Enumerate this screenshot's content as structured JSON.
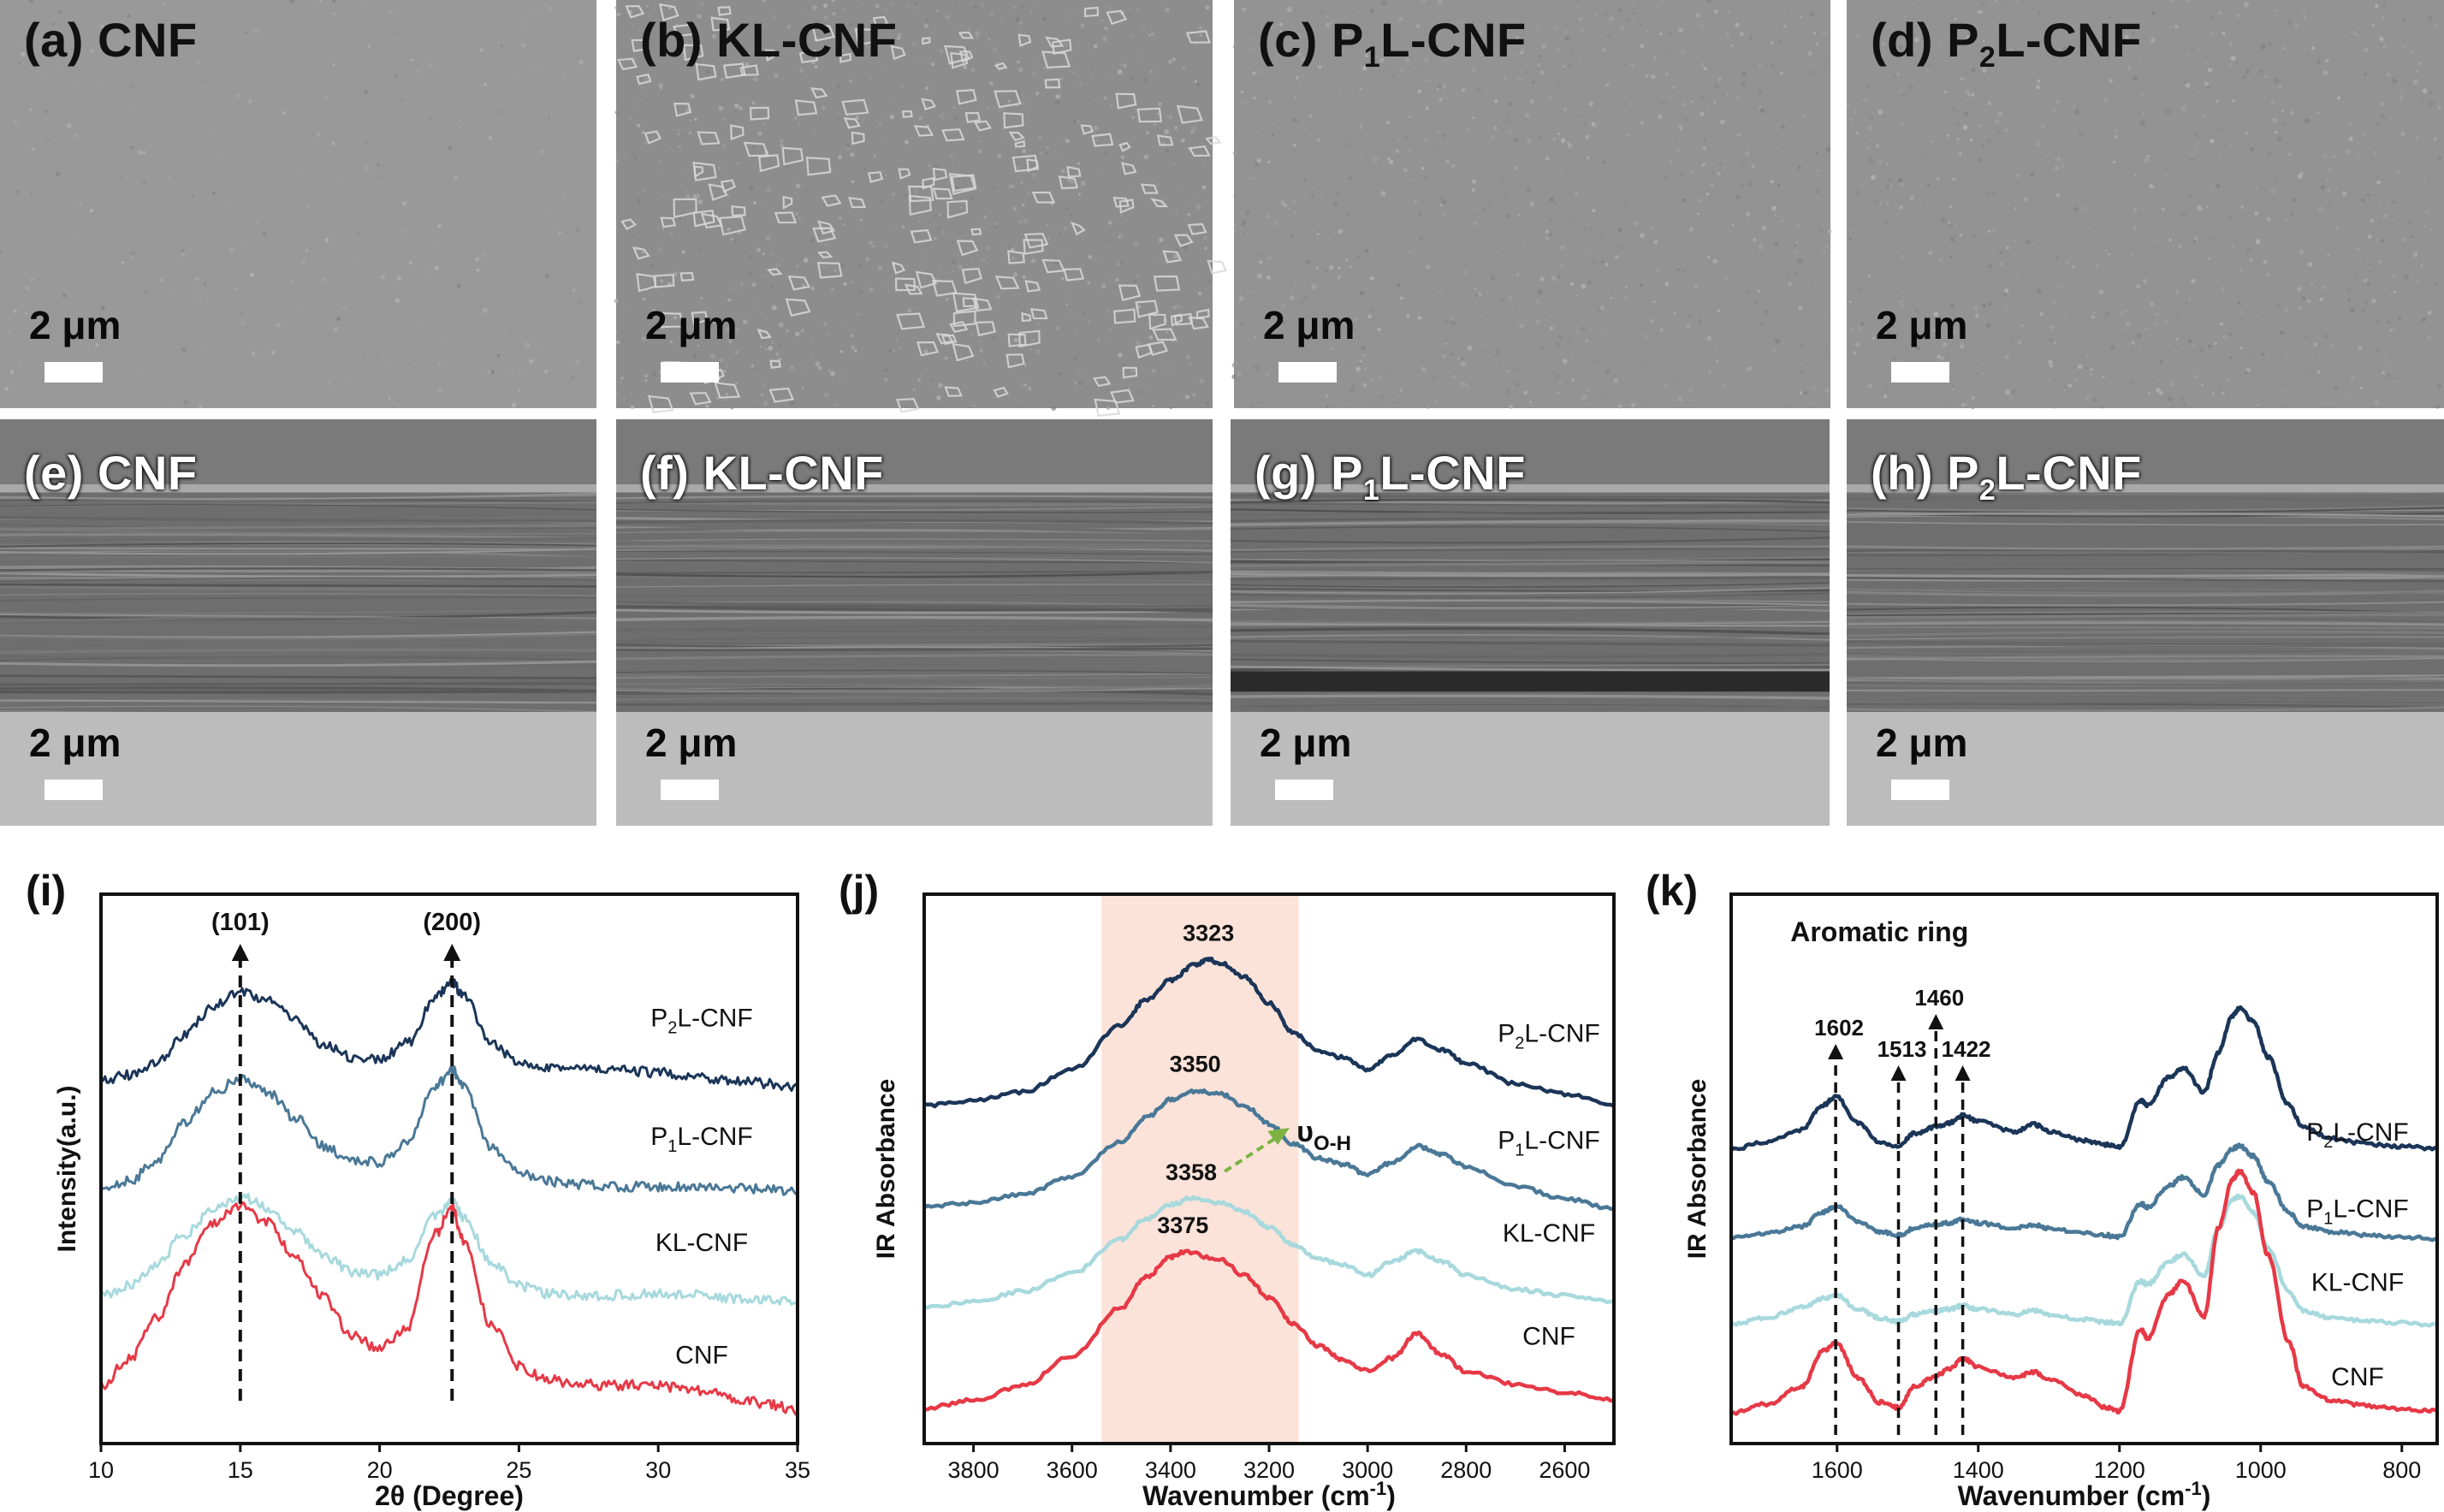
{
  "sem_panels": [
    {
      "id": "a",
      "label": "(a) CNF",
      "scale": "2 μm",
      "view": "surface",
      "texture": "smooth"
    },
    {
      "id": "b",
      "label": "(b) KL-CNF",
      "scale": "2 μm",
      "view": "surface",
      "texture": "particles"
    },
    {
      "id": "c",
      "label": "(c) P1L-CNF",
      "label_main": "(c) P",
      "label_sub": "1",
      "label_rest": "L-CNF",
      "scale": "2 μm",
      "view": "surface",
      "texture": "fine"
    },
    {
      "id": "d",
      "label": "(d) P2L-CNF",
      "label_main": "(d) P",
      "label_sub": "2",
      "label_rest": "L-CNF",
      "scale": "2 μm",
      "view": "surface",
      "texture": "fine"
    },
    {
      "id": "e",
      "label": "(e) CNF",
      "scale": "2 μm",
      "view": "cross-section",
      "texture": "layered"
    },
    {
      "id": "f",
      "label": "(f) KL-CNF",
      "scale": "2 μm",
      "view": "cross-section",
      "texture": "layered"
    },
    {
      "id": "g",
      "label": "(g) P1L-CNF",
      "label_main": "(g) P",
      "label_sub": "1",
      "label_rest": "L-CNF",
      "scale": "2 μm",
      "view": "cross-section",
      "texture": "layered-gap"
    },
    {
      "id": "h",
      "label": "(h) P2L-CNF",
      "label_main": "(h) P",
      "label_sub": "2",
      "label_rest": "L-CNF",
      "scale": "2 μm",
      "view": "cross-section",
      "texture": "layered"
    }
  ],
  "colors": {
    "P2L-CNF": "#1b3558",
    "P1L-CNF": "#4a7897",
    "KL-CNF": "#a7d9dd",
    "CNF": "#e63946",
    "highlight": "#fbe3d9",
    "arrow": "#7cb342"
  },
  "chart_data": [
    {
      "panel": "(i)",
      "type": "line",
      "xlabel": "2θ (Degree)",
      "ylabel": "Intensity(a.u.)",
      "xlim": [
        10,
        35
      ],
      "xticks": [
        10,
        15,
        20,
        25,
        30,
        35
      ],
      "annotations": [
        {
          "text": "(101)",
          "x": 15
        },
        {
          "text": "(200)",
          "x": 22.6
        }
      ],
      "series": [
        {
          "name": "P2L-CNF",
          "label_main": "P",
          "label_sub": "2",
          "label_rest": "L-CNF",
          "offset": 3.0,
          "x": [
            10,
            11,
            12,
            13,
            14,
            15,
            16,
            17,
            18,
            19,
            20,
            21,
            22,
            22.6,
            23,
            24,
            25,
            26,
            27,
            28,
            29,
            30,
            31,
            32,
            33,
            34,
            35
          ],
          "y": [
            0.0,
            0.06,
            0.18,
            0.42,
            0.68,
            0.82,
            0.74,
            0.55,
            0.34,
            0.22,
            0.2,
            0.35,
            0.76,
            0.9,
            0.78,
            0.34,
            0.18,
            0.14,
            0.12,
            0.11,
            0.1,
            0.08,
            0.06,
            0.03,
            0.0,
            -0.02,
            -0.04
          ]
        },
        {
          "name": "P1L-CNF",
          "label_main": "P",
          "label_sub": "1",
          "label_rest": "L-CNF",
          "offset": 2.0,
          "x": [
            10,
            11,
            12,
            13,
            14,
            15,
            16,
            17,
            18,
            19,
            20,
            21,
            22,
            22.6,
            23,
            24,
            25,
            26,
            27,
            28,
            29,
            30,
            31,
            32,
            33,
            34,
            35
          ],
          "y": [
            0.0,
            0.1,
            0.28,
            0.62,
            0.9,
            1.02,
            0.9,
            0.66,
            0.42,
            0.28,
            0.27,
            0.45,
            0.95,
            1.12,
            0.95,
            0.4,
            0.18,
            0.1,
            0.07,
            0.06,
            0.05,
            0.05,
            0.05,
            0.04,
            0.03,
            0.02,
            0.0
          ]
        },
        {
          "name": "KL-CNF",
          "offset": 1.0,
          "x": [
            10,
            11,
            12,
            13,
            14,
            15,
            16,
            17,
            18,
            19,
            20,
            21,
            22,
            22.6,
            23,
            24,
            25,
            26,
            27,
            28,
            29,
            30,
            31,
            32,
            33,
            34,
            35
          ],
          "y": [
            0.05,
            0.16,
            0.34,
            0.62,
            0.84,
            0.96,
            0.86,
            0.64,
            0.42,
            0.28,
            0.25,
            0.38,
            0.78,
            0.92,
            0.78,
            0.36,
            0.15,
            0.08,
            0.06,
            0.06,
            0.07,
            0.08,
            0.07,
            0.05,
            0.03,
            0.02,
            0.0
          ]
        },
        {
          "name": "CNF",
          "offset": 0.0,
          "x": [
            10,
            11,
            12,
            13,
            14,
            15,
            16,
            17,
            18,
            19,
            20,
            21,
            22,
            22.6,
            23,
            24,
            25,
            26,
            27,
            28,
            29,
            30,
            31,
            32,
            33,
            34,
            35
          ],
          "y": [
            0.25,
            0.48,
            0.86,
            1.34,
            1.72,
            1.88,
            1.72,
            1.4,
            1.04,
            0.7,
            0.58,
            0.78,
            1.62,
            1.86,
            1.56,
            0.8,
            0.42,
            0.3,
            0.26,
            0.25,
            0.25,
            0.24,
            0.22,
            0.18,
            0.12,
            0.07,
            0.02
          ]
        }
      ]
    },
    {
      "panel": "(j)",
      "type": "line",
      "xlabel": "Wavenumber (cm⁻¹)",
      "ylabel": "IR Absorbance",
      "xlim": [
        3900,
        2500
      ],
      "xticks": [
        3800,
        3600,
        3400,
        3200,
        3000,
        2800,
        2600
      ],
      "highlight_band": [
        3540,
        3140
      ],
      "arrow_label": {
        "main": "υ",
        "sub": "O-H"
      },
      "series": [
        {
          "name": "P2L-CNF",
          "label_main": "P",
          "label_sub": "2",
          "label_rest": "L-CNF",
          "offset": 3.0,
          "peak_label": "3323",
          "peak_x": 3323,
          "x": [
            3900,
            3800,
            3700,
            3600,
            3500,
            3450,
            3400,
            3350,
            3323,
            3300,
            3250,
            3200,
            3150,
            3100,
            3050,
            3000,
            2950,
            2900,
            2850,
            2800,
            2700,
            2600,
            2500
          ],
          "y": [
            0.0,
            0.05,
            0.14,
            0.36,
            0.8,
            1.05,
            1.25,
            1.4,
            1.45,
            1.42,
            1.28,
            1.02,
            0.72,
            0.55,
            0.48,
            0.36,
            0.5,
            0.66,
            0.56,
            0.42,
            0.22,
            0.12,
            0.0
          ]
        },
        {
          "name": "P1L-CNF",
          "label_main": "P",
          "label_sub": "1",
          "label_rest": "L-CNF",
          "offset": 2.0,
          "peak_label": "3350",
          "peak_x": 3350,
          "x": [
            3900,
            3800,
            3700,
            3600,
            3500,
            3450,
            3400,
            3350,
            3300,
            3250,
            3200,
            3150,
            3100,
            3050,
            3000,
            2950,
            2900,
            2850,
            2800,
            2700,
            2600,
            2500
          ],
          "y": [
            0.0,
            0.04,
            0.12,
            0.3,
            0.65,
            0.88,
            1.06,
            1.15,
            1.12,
            1.0,
            0.82,
            0.62,
            0.48,
            0.42,
            0.32,
            0.44,
            0.6,
            0.52,
            0.4,
            0.2,
            0.08,
            -0.02
          ]
        },
        {
          "name": "KL-CNF",
          "offset": 1.0,
          "peak_label": "3358",
          "peak_x": 3358,
          "x": [
            3900,
            3800,
            3700,
            3600,
            3500,
            3450,
            3400,
            3358,
            3300,
            3250,
            3200,
            3150,
            3100,
            3050,
            3000,
            2950,
            2900,
            2850,
            2800,
            2700,
            2600,
            2500
          ],
          "y": [
            0.0,
            0.06,
            0.16,
            0.34,
            0.68,
            0.88,
            1.02,
            1.08,
            1.04,
            0.95,
            0.8,
            0.62,
            0.48,
            0.42,
            0.32,
            0.45,
            0.56,
            0.46,
            0.32,
            0.18,
            0.12,
            0.06
          ]
        },
        {
          "name": "CNF",
          "offset": 0.0,
          "peak_label": "3375",
          "peak_x": 3375,
          "x": [
            3900,
            3800,
            3700,
            3600,
            3500,
            3450,
            3400,
            3375,
            3300,
            3250,
            3200,
            3150,
            3100,
            3050,
            3000,
            2950,
            2900,
            2850,
            2800,
            2700,
            2600,
            2500
          ],
          "y": [
            0.0,
            0.08,
            0.22,
            0.52,
            1.0,
            1.3,
            1.5,
            1.55,
            1.48,
            1.32,
            1.1,
            0.84,
            0.62,
            0.48,
            0.38,
            0.5,
            0.74,
            0.54,
            0.36,
            0.24,
            0.16,
            0.08
          ]
        }
      ]
    },
    {
      "panel": "(k)",
      "type": "line",
      "xlabel": "Wavenumber (cm⁻¹)",
      "ylabel": "IR Absorbance",
      "xlim": [
        1750,
        750
      ],
      "xticks": [
        1600,
        1400,
        1200,
        1000,
        800
      ],
      "annotations": [
        {
          "text": "Aromatic ring",
          "x": 1540
        },
        {
          "text": "1602",
          "x": 1602
        },
        {
          "text": "1513",
          "x": 1513
        },
        {
          "text": "1460",
          "x": 1460
        },
        {
          "text": "1422",
          "x": 1422
        }
      ],
      "series": [
        {
          "name": "P2L-CNF",
          "label_main": "P",
          "label_sub": "2",
          "label_rest": "L-CNF",
          "offset": 3.0,
          "x": [
            1750,
            1700,
            1650,
            1620,
            1602,
            1570,
            1540,
            1513,
            1490,
            1460,
            1440,
            1422,
            1400,
            1350,
            1320,
            1300,
            1250,
            1220,
            1200,
            1170,
            1160,
            1130,
            1110,
            1080,
            1060,
            1040,
            1030,
            1010,
            990,
            960,
            940,
            900,
            850,
            800,
            750
          ],
          "y": [
            0.0,
            0.08,
            0.22,
            0.5,
            0.6,
            0.3,
            0.08,
            0.04,
            0.18,
            0.25,
            0.3,
            0.38,
            0.32,
            0.2,
            0.28,
            0.2,
            0.1,
            0.05,
            0.02,
            0.55,
            0.5,
            0.82,
            0.92,
            0.65,
            1.1,
            1.52,
            1.6,
            1.45,
            1.05,
            0.5,
            0.25,
            0.12,
            0.06,
            0.03,
            0.0
          ]
        },
        {
          "name": "P1L-CNF",
          "label_main": "P",
          "label_sub": "1",
          "label_rest": "L-CNF",
          "offset": 2.0,
          "x": [
            1750,
            1700,
            1650,
            1620,
            1602,
            1570,
            1540,
            1513,
            1490,
            1460,
            1440,
            1422,
            1400,
            1350,
            1320,
            1300,
            1250,
            1220,
            1200,
            1170,
            1160,
            1130,
            1110,
            1080,
            1060,
            1040,
            1030,
            1010,
            990,
            960,
            940,
            900,
            850,
            800,
            750
          ],
          "y": [
            0.0,
            0.04,
            0.12,
            0.28,
            0.35,
            0.18,
            0.06,
            0.02,
            0.1,
            0.14,
            0.16,
            0.2,
            0.16,
            0.1,
            0.14,
            0.1,
            0.05,
            0.02,
            0.0,
            0.38,
            0.34,
            0.58,
            0.68,
            0.48,
            0.82,
            1.0,
            1.04,
            0.92,
            0.64,
            0.28,
            0.12,
            0.06,
            0.02,
            0.0,
            -0.02
          ]
        },
        {
          "name": "KL-CNF",
          "offset": 1.0,
          "x": [
            1750,
            1700,
            1650,
            1620,
            1602,
            1570,
            1540,
            1513,
            1490,
            1460,
            1440,
            1422,
            1400,
            1350,
            1320,
            1300,
            1250,
            1220,
            1200,
            1170,
            1160,
            1130,
            1110,
            1080,
            1060,
            1040,
            1030,
            1010,
            990,
            960,
            940,
            900,
            850,
            800,
            750
          ],
          "y": [
            0.0,
            0.08,
            0.2,
            0.3,
            0.34,
            0.18,
            0.08,
            0.04,
            0.12,
            0.16,
            0.18,
            0.22,
            0.18,
            0.12,
            0.16,
            0.12,
            0.06,
            0.03,
            0.02,
            0.5,
            0.46,
            0.72,
            0.8,
            0.56,
            1.1,
            1.42,
            1.46,
            1.28,
            0.88,
            0.38,
            0.16,
            0.08,
            0.04,
            0.02,
            0.0
          ]
        },
        {
          "name": "CNF",
          "offset": 0.0,
          "x": [
            1750,
            1700,
            1650,
            1620,
            1602,
            1570,
            1540,
            1513,
            1490,
            1460,
            1440,
            1422,
            1400,
            1350,
            1320,
            1300,
            1250,
            1220,
            1200,
            1170,
            1160,
            1130,
            1110,
            1080,
            1060,
            1040,
            1030,
            1010,
            990,
            960,
            940,
            900,
            850,
            800,
            750
          ],
          "y": [
            0.0,
            0.1,
            0.3,
            0.7,
            0.8,
            0.4,
            0.12,
            0.06,
            0.3,
            0.42,
            0.5,
            0.62,
            0.52,
            0.4,
            0.46,
            0.38,
            0.2,
            0.06,
            0.02,
            0.95,
            0.85,
            1.35,
            1.5,
            1.1,
            2.1,
            2.65,
            2.75,
            2.5,
            1.8,
            0.8,
            0.3,
            0.14,
            0.08,
            0.04,
            0.02
          ]
        }
      ]
    }
  ]
}
